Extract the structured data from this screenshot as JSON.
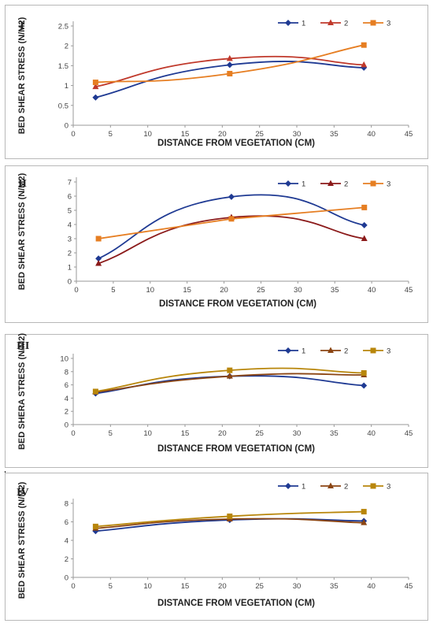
{
  "chart_data": [
    {
      "type": "line",
      "panel_label": "I",
      "ylabel": "BED SHEAR STRESS (N/M2)",
      "xlabel": "DISTANCE FROM VEGETATION (CM)",
      "xlim": [
        0,
        45
      ],
      "xticks": [
        0,
        5,
        10,
        15,
        20,
        25,
        30,
        35,
        40,
        45
      ],
      "ylim": [
        0,
        2.5
      ],
      "yticks": [
        0,
        0.5,
        1,
        1.5,
        2,
        2.5
      ],
      "x": [
        3,
        21,
        39
      ],
      "legend_position": "top-right",
      "series": [
        {
          "name": "1",
          "values": [
            0.7,
            1.52,
            1.45
          ],
          "color": "#1f3a93",
          "marker": "diamond"
        },
        {
          "name": "2",
          "values": [
            0.97,
            1.68,
            1.52
          ],
          "color": "#c0392b",
          "marker": "triangle"
        },
        {
          "name": "3",
          "values": [
            1.08,
            1.3,
            2.02
          ],
          "color": "#e67e22",
          "marker": "square"
        }
      ]
    },
    {
      "type": "line",
      "panel_label": "II",
      "ylabel": "BED SHEAR STRESS (N/M2)",
      "xlabel": "DISTANCE FROM VEGETATION (CM)",
      "xlim": [
        0,
        45
      ],
      "xticks": [
        0,
        5,
        10,
        15,
        20,
        25,
        30,
        35,
        40,
        45
      ],
      "ylim": [
        0,
        7
      ],
      "yticks": [
        0,
        1,
        2,
        3,
        4,
        5,
        6,
        7
      ],
      "x": [
        3,
        21,
        39
      ],
      "legend_position": "top-right",
      "series": [
        {
          "name": "1",
          "values": [
            1.6,
            5.95,
            3.95
          ],
          "color": "#1f3a93",
          "marker": "diamond"
        },
        {
          "name": "2",
          "values": [
            1.25,
            4.5,
            3.0
          ],
          "color": "#8b1a1a",
          "marker": "triangle"
        },
        {
          "name": "3",
          "values": [
            3.0,
            4.4,
            5.2
          ],
          "color": "#e67e22",
          "marker": "square"
        }
      ]
    },
    {
      "type": "line",
      "panel_label": "III",
      "ylabel": "BED SHERA STRESS (N/M2)",
      "xlabel": "DISTANCE FROM VEGETATION (CM)",
      "xlim": [
        0,
        45
      ],
      "xticks": [
        0,
        5,
        10,
        15,
        20,
        25,
        30,
        35,
        40,
        45
      ],
      "ylim": [
        0,
        10
      ],
      "yticks": [
        0,
        2,
        4,
        6,
        8,
        10
      ],
      "x": [
        3,
        21,
        39
      ],
      "legend_position": "top-right",
      "series": [
        {
          "name": "1",
          "values": [
            4.7,
            7.3,
            5.9
          ],
          "color": "#1f3a93",
          "marker": "diamond"
        },
        {
          "name": "2",
          "values": [
            4.9,
            7.3,
            7.5
          ],
          "color": "#8b4513",
          "marker": "triangle"
        },
        {
          "name": "3",
          "values": [
            5.0,
            8.2,
            7.8
          ],
          "color": "#b8860b",
          "marker": "square"
        }
      ]
    },
    {
      "type": "line",
      "panel_label": "IV",
      "ylabel": "BED SHEAR STRESS (N/M2)",
      "xlabel": "DISTANCE FROM VEGETATION (CM)",
      "xlim": [
        0,
        45
      ],
      "xticks": [
        0,
        5,
        10,
        15,
        20,
        25,
        30,
        35,
        40,
        45
      ],
      "ylim": [
        0,
        8
      ],
      "yticks": [
        0,
        2,
        4,
        6,
        8
      ],
      "x": [
        3,
        21,
        39
      ],
      "legend_position": "top-right",
      "series": [
        {
          "name": "1",
          "values": [
            5.0,
            6.2,
            6.1
          ],
          "color": "#1f3a93",
          "marker": "diamond"
        },
        {
          "name": "2",
          "values": [
            5.3,
            6.3,
            5.9
          ],
          "color": "#8b4513",
          "marker": "triangle"
        },
        {
          "name": "3",
          "values": [
            5.5,
            6.6,
            7.1
          ],
          "color": "#b8860b",
          "marker": "square"
        }
      ]
    }
  ]
}
